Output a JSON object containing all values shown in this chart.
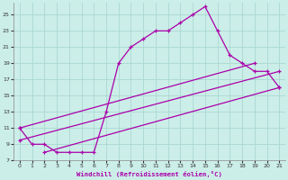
{
  "xlabel": "Windchill (Refroidissement éolien,°C)",
  "background_color": "#cceee8",
  "grid_color": "#aad8d2",
  "line_color": "#aa00aa",
  "xlim": [
    -0.5,
    21.5
  ],
  "ylim": [
    7,
    26.5
  ],
  "yticks": [
    7,
    9,
    11,
    13,
    15,
    17,
    19,
    21,
    23,
    25
  ],
  "xticks": [
    0,
    1,
    2,
    3,
    4,
    5,
    6,
    7,
    8,
    9,
    10,
    11,
    12,
    13,
    14,
    15,
    16,
    17,
    18,
    19,
    20,
    21
  ],
  "series": [
    {
      "x": [
        0,
        1,
        2,
        3,
        4,
        5,
        6,
        7,
        8,
        9,
        10,
        11,
        12,
        13,
        14,
        15,
        16,
        17,
        18,
        19,
        20,
        21
      ],
      "y": [
        11,
        9,
        9,
        8,
        8,
        8,
        8,
        13,
        19,
        21,
        22,
        23,
        23,
        24,
        25,
        26,
        23,
        20,
        19,
        18,
        18,
        16
      ]
    },
    {
      "x": [
        0,
        19
      ],
      "y": [
        11,
        19
      ]
    },
    {
      "x": [
        0,
        21
      ],
      "y": [
        9.5,
        18
      ]
    },
    {
      "x": [
        2,
        21
      ],
      "y": [
        8,
        16
      ]
    }
  ]
}
